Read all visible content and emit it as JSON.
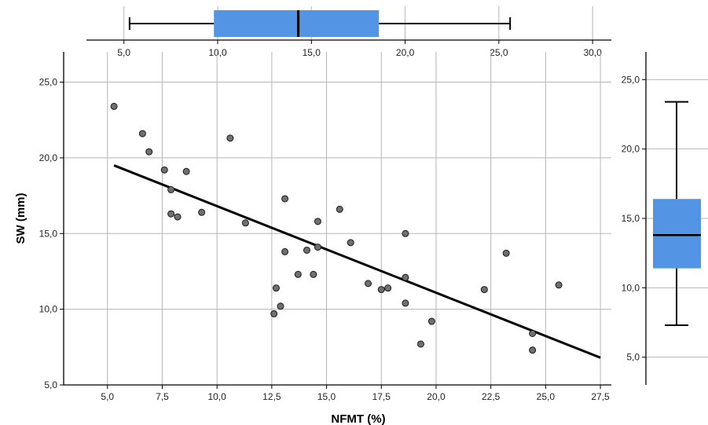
{
  "chart_data": [
    {
      "type": "scatter",
      "xlabel": "NFMT (%)",
      "ylabel": "SW (mm)",
      "xlim": [
        3.0,
        28.0
      ],
      "ylim": [
        5.0,
        27.0
      ],
      "xticks": [
        "5,0",
        "7,5",
        "10,0",
        "12,5",
        "15,0",
        "17,5",
        "20,0",
        "22,5",
        "25,0",
        "27,5"
      ],
      "xtick_values": [
        5.0,
        7.5,
        10.0,
        12.5,
        15.0,
        17.5,
        20.0,
        22.5,
        25.0,
        27.5
      ],
      "yticks": [
        "5,0",
        "10,0",
        "15,0",
        "20,0",
        "25,0"
      ],
      "ytick_values": [
        5.0,
        10.0,
        15.0,
        20.0,
        25.0
      ],
      "grid": true,
      "colors": {
        "point_fill": "#6f6f6f",
        "point_stroke": "#1a1a1a",
        "line": "#000000"
      },
      "points": [
        {
          "x": 5.3,
          "y": 23.4
        },
        {
          "x": 6.6,
          "y": 21.6
        },
        {
          "x": 6.9,
          "y": 20.4
        },
        {
          "x": 7.6,
          "y": 19.2
        },
        {
          "x": 7.9,
          "y": 17.9
        },
        {
          "x": 7.9,
          "y": 16.3
        },
        {
          "x": 8.2,
          "y": 16.1
        },
        {
          "x": 8.6,
          "y": 19.1
        },
        {
          "x": 9.3,
          "y": 16.4
        },
        {
          "x": 10.6,
          "y": 21.3
        },
        {
          "x": 11.3,
          "y": 15.7
        },
        {
          "x": 12.6,
          "y": 9.7
        },
        {
          "x": 12.7,
          "y": 11.4
        },
        {
          "x": 12.9,
          "y": 10.2
        },
        {
          "x": 13.1,
          "y": 17.3
        },
        {
          "x": 13.1,
          "y": 13.8
        },
        {
          "x": 13.7,
          "y": 12.3
        },
        {
          "x": 14.1,
          "y": 13.9
        },
        {
          "x": 14.4,
          "y": 12.3
        },
        {
          "x": 14.6,
          "y": 15.8
        },
        {
          "x": 14.6,
          "y": 14.1
        },
        {
          "x": 15.6,
          "y": 16.6
        },
        {
          "x": 16.1,
          "y": 14.4
        },
        {
          "x": 16.9,
          "y": 11.7
        },
        {
          "x": 17.5,
          "y": 11.3
        },
        {
          "x": 17.8,
          "y": 11.4
        },
        {
          "x": 18.6,
          "y": 15.0
        },
        {
          "x": 18.6,
          "y": 12.1
        },
        {
          "x": 18.6,
          "y": 10.4
        },
        {
          "x": 19.3,
          "y": 7.7
        },
        {
          "x": 19.8,
          "y": 9.2
        },
        {
          "x": 22.2,
          "y": 11.3
        },
        {
          "x": 23.2,
          "y": 13.7
        },
        {
          "x": 24.4,
          "y": 8.4
        },
        {
          "x": 24.4,
          "y": 7.3
        },
        {
          "x": 25.6,
          "y": 11.6
        }
      ],
      "fit_line": {
        "x": [
          5.3,
          27.5
        ],
        "y": [
          19.5,
          6.8
        ]
      }
    },
    {
      "type": "boxplot",
      "orientation": "horizontal",
      "variable": "NFMT (%)",
      "xlim": [
        3.0,
        31.0
      ],
      "xticks": [
        "5,0",
        "10,0",
        "15,0",
        "20,0",
        "25,0",
        "30,0"
      ],
      "xtick_values": [
        5.0,
        10.0,
        15.0,
        20.0,
        25.0,
        30.0
      ],
      "grid": true,
      "whisker_low": 5.3,
      "q1": 9.8,
      "median": 14.3,
      "q3": 18.6,
      "whisker_high": 25.6,
      "color": "#5394e4"
    },
    {
      "type": "boxplot",
      "orientation": "vertical",
      "variable": "SW (mm)",
      "ylim": [
        3.0,
        27.0
      ],
      "yticks": [
        "5,0",
        "10,0",
        "15,0",
        "20,0",
        "25,0"
      ],
      "ytick_values": [
        5.0,
        10.0,
        15.0,
        20.0,
        25.0
      ],
      "grid": true,
      "whisker_low": 7.3,
      "q1": 11.4,
      "median": 13.8,
      "q3": 16.4,
      "whisker_high": 23.4,
      "color": "#5394e4"
    }
  ]
}
